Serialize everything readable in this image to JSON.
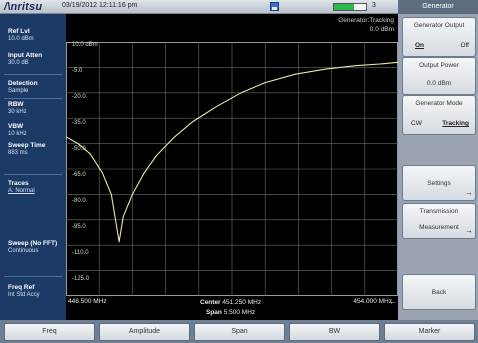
{
  "titlebar": {
    "logo": "/\\nritsu",
    "datetime": "03/19/2012 12:11:16 pm",
    "battery_label": "3",
    "battery_level": 0.62,
    "colors": {
      "battery": "#2db84a"
    }
  },
  "left_panel": {
    "ref_lvl_label": "Ref Lvl",
    "ref_lvl_value": "10.0 dBm",
    "input_atten_label": "Input Atten",
    "input_atten_value": "30.0 dB",
    "detection_label": "Detection",
    "detection_value": "Sample",
    "rbw_label": "RBW",
    "rbw_value": "30 kHz",
    "vbw_label": "VBW",
    "vbw_value": "10 kHz",
    "sweep_time_label": "Sweep Time",
    "sweep_time_value": "883 ms",
    "traces_label": "Traces",
    "traces_value": "A: Normal",
    "sweep_label": "Sweep (No FFT)",
    "sweep_value": "Continuous",
    "freq_ref_label": "Freq Ref",
    "freq_ref_value": "Int Std Accy"
  },
  "plot": {
    "generator_status_line1": "Generator:Tracking",
    "generator_status_line2": "0.0 dBm",
    "y_ticks": [
      "10.0 dBm",
      "-5.0",
      "-20.0",
      "-35.0",
      "-50.0",
      "-65.0",
      "-80.0",
      "-95.0",
      "-110.0",
      "-125.0"
    ],
    "x_start": "448.500 MHz",
    "x_stop": "454.000 MHz",
    "center_label": "Center",
    "center_value": "451.250 MHz",
    "span_label": "Span",
    "span_value": "5.500 MHz",
    "colors": {
      "trace": "#ece8a8",
      "grid": "#6b6b6b",
      "border": "#9a9a9a"
    }
  },
  "chart_data": {
    "type": "line",
    "y_unit": "dBm",
    "ylim": [
      -140,
      10
    ],
    "xlim": [
      448.5,
      454.0
    ],
    "x_unit": "MHz",
    "grid": true,
    "series": [
      {
        "x": [
          448.5,
          448.7,
          448.9,
          449.1,
          449.25,
          449.32,
          449.38,
          449.45,
          449.6,
          449.8,
          450.0,
          450.3,
          450.6,
          451.0,
          451.4,
          451.8,
          452.3,
          452.8,
          453.3,
          453.7,
          454.0
        ],
        "y": [
          -46,
          -50,
          -56,
          -67,
          -80,
          -95,
          -108,
          -93,
          -80,
          -67,
          -57,
          -46,
          -37,
          -28,
          -20,
          -14,
          -9,
          -6,
          -4,
          -3,
          -2
        ]
      }
    ]
  },
  "right_panel": {
    "menu_title": "Generator",
    "generator_output_label": "Generator Output",
    "on_label": "On",
    "off_label": "Off",
    "output_power_label": "Output Power",
    "output_power_value": "0.0 dBm",
    "generator_mode_label": "Generator Mode",
    "cw_label": "CW",
    "tracking_label": "Tracking",
    "settings_label": "Settings",
    "transmission_line1": "Transmission",
    "transmission_line2": "Measurement",
    "back_label": "Back"
  },
  "bottom_bar": {
    "tabs": [
      "Freq",
      "Amplitude",
      "Span",
      "BW",
      "Marker"
    ]
  }
}
